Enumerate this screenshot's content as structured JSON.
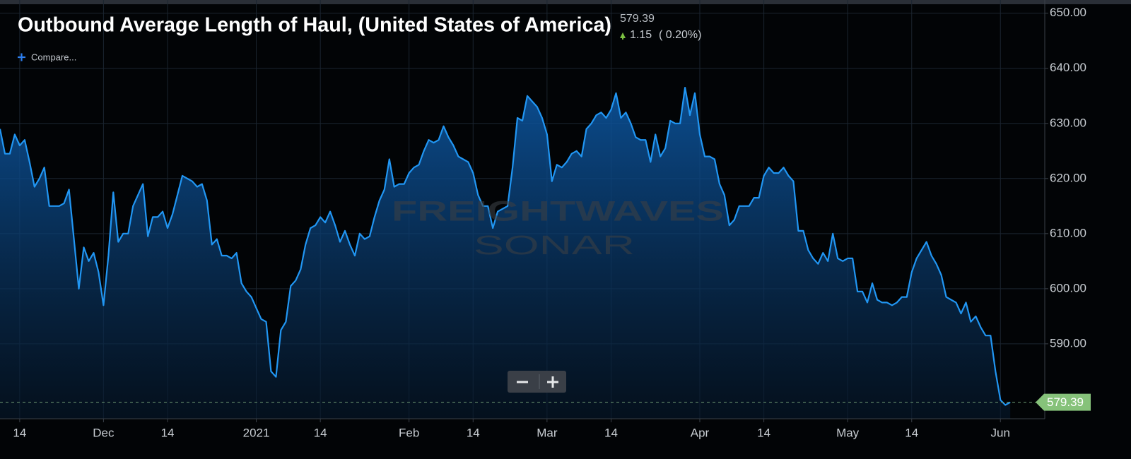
{
  "chart_data": {
    "type": "line",
    "title": "Outbound Average Length of Haul, (United States of America)",
    "last_value": 579.39,
    "change": 1.15,
    "change_percent": "( 0.20%)",
    "compare_label": "Compare...",
    "watermark": "FREIGHTWAVES",
    "watermark_sub": "SONAR",
    "grid": true,
    "xlim": [
      0,
      212
    ],
    "xticks": [
      {
        "value": 4,
        "label": "14"
      },
      {
        "value": 21,
        "label": "Dec"
      },
      {
        "value": 34,
        "label": "14"
      },
      {
        "value": 52,
        "label": "2021"
      },
      {
        "value": 65,
        "label": "14"
      },
      {
        "value": 83,
        "label": "Feb"
      },
      {
        "value": 96,
        "label": "14"
      },
      {
        "value": 111,
        "label": "Mar"
      },
      {
        "value": 124,
        "label": "14"
      },
      {
        "value": 142,
        "label": "Apr"
      },
      {
        "value": 155,
        "label": "14"
      },
      {
        "value": 172,
        "label": "May"
      },
      {
        "value": 185,
        "label": "14"
      },
      {
        "value": 203,
        "label": "Jun"
      }
    ],
    "ylim": [
      576.4,
      652.4
    ],
    "yticks": [
      {
        "value": 590,
        "label": "590.00"
      },
      {
        "value": 600,
        "label": "600.00"
      },
      {
        "value": 610,
        "label": "610.00"
      },
      {
        "value": 620,
        "label": "620.00"
      },
      {
        "value": 630,
        "label": "630.00"
      },
      {
        "value": 640,
        "label": "640.00"
      },
      {
        "value": 650,
        "label": "650.00"
      }
    ],
    "series": [
      {
        "color": "#2196f3",
        "values": [
          629,
          624.5,
          624.5,
          628,
          626,
          627,
          623,
          618.5,
          620,
          622,
          615,
          615,
          615,
          615.5,
          618,
          609,
          600,
          607.5,
          605,
          606.5,
          603,
          597,
          606,
          617.5,
          608.5,
          610,
          610,
          615,
          617,
          619,
          609.5,
          613,
          613,
          614,
          611,
          613.5,
          617,
          620.5,
          620,
          619.5,
          618.5,
          619,
          616,
          608,
          609,
          606,
          606,
          605.5,
          606.5,
          601,
          599.5,
          598.5,
          596.5,
          594.5,
          594,
          585,
          584,
          592.5,
          594,
          600.5,
          601.5,
          603.5,
          608,
          611,
          611.5,
          613,
          612,
          614,
          611.5,
          608.5,
          610.5,
          608,
          606,
          610,
          609,
          609.5,
          613,
          616,
          618,
          623.5,
          618.5,
          619,
          619,
          621,
          622,
          622.5,
          625,
          627,
          626.5,
          627,
          629.5,
          627.5,
          626,
          624,
          623.5,
          623,
          621,
          617,
          615,
          615,
          611,
          614,
          614.5,
          615,
          622,
          631,
          630.5,
          635,
          634,
          633,
          631,
          628,
          619.5,
          622.5,
          622,
          623,
          624.5,
          625,
          624,
          629,
          630,
          631.5,
          632,
          631,
          632.5,
          635.5,
          631,
          632,
          630,
          627.5,
          627,
          627,
          623,
          628,
          624,
          625.5,
          630.5,
          630,
          630,
          636.5,
          631.5,
          635.5,
          628,
          624,
          624,
          623.5,
          619,
          617,
          611.5,
          612.5,
          615,
          615,
          615,
          616.5,
          616.5,
          620.5,
          622,
          621,
          621,
          622,
          620.5,
          619.5,
          610.5,
          610.5,
          607,
          605.5,
          604.5,
          606.5,
          605,
          610,
          605.5,
          605,
          605.5,
          605.5,
          599.5,
          599.5,
          597.5,
          601,
          598,
          597.5,
          597.5,
          597,
          597.5,
          598.5,
          598.5,
          603,
          605.5,
          607,
          608.5,
          606,
          604.5,
          602.5,
          598.5,
          598,
          597.5,
          595.5,
          597.5,
          594,
          595,
          593,
          591.5,
          591.5,
          585,
          579.8,
          578.9,
          579.39
        ]
      }
    ]
  }
}
